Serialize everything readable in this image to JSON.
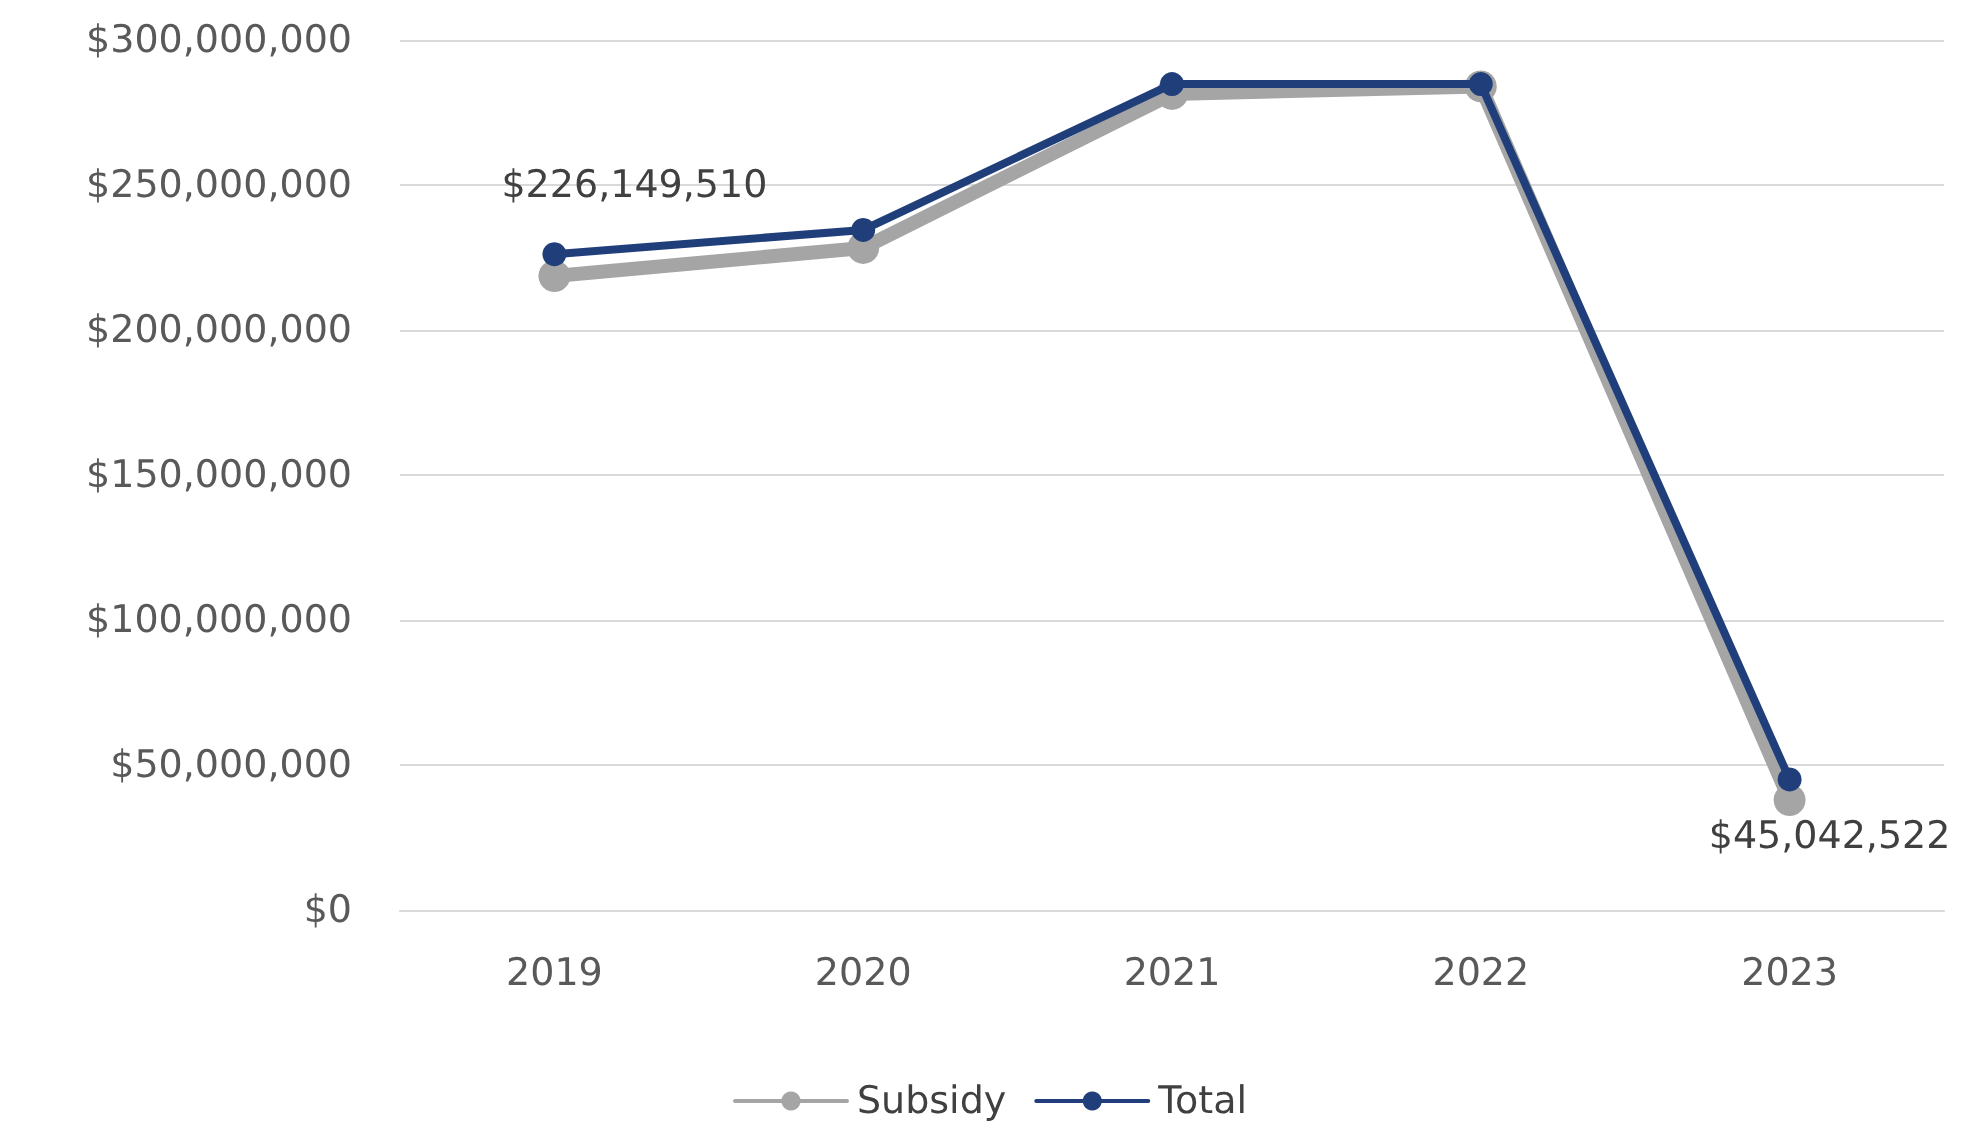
{
  "chart_data": {
    "type": "line",
    "categories": [
      "2019",
      "2020",
      "2021",
      "2022",
      "2023"
    ],
    "series": [
      {
        "name": "Subsidy",
        "color": "#a5a5a5",
        "values": [
          218600000,
          228300000,
          281400000,
          284000000,
          37900000
        ]
      },
      {
        "name": "Total",
        "color": "#203f7a",
        "values": [
          226149510,
          234500000,
          284800000,
          284800000,
          45042522
        ],
        "value_labels": [
          "$226,149,510",
          null,
          null,
          null,
          "$45,042,522"
        ]
      }
    ],
    "ylim": [
      0,
      300000000
    ],
    "yticks": [
      {
        "value": 0,
        "label": "$0"
      },
      {
        "value": 50000000,
        "label": "$50,000,000"
      },
      {
        "value": 100000000,
        "label": "$100,000,000"
      },
      {
        "value": 150000000,
        "label": "$150,000,000"
      },
      {
        "value": 200000000,
        "label": "$200,000,000"
      },
      {
        "value": 250000000,
        "label": "$250,000,000"
      },
      {
        "value": 300000000,
        "label": "$300,000,000"
      }
    ],
    "grid": "y",
    "legend": "bottom",
    "marker": "circle",
    "line_style": "solid"
  }
}
